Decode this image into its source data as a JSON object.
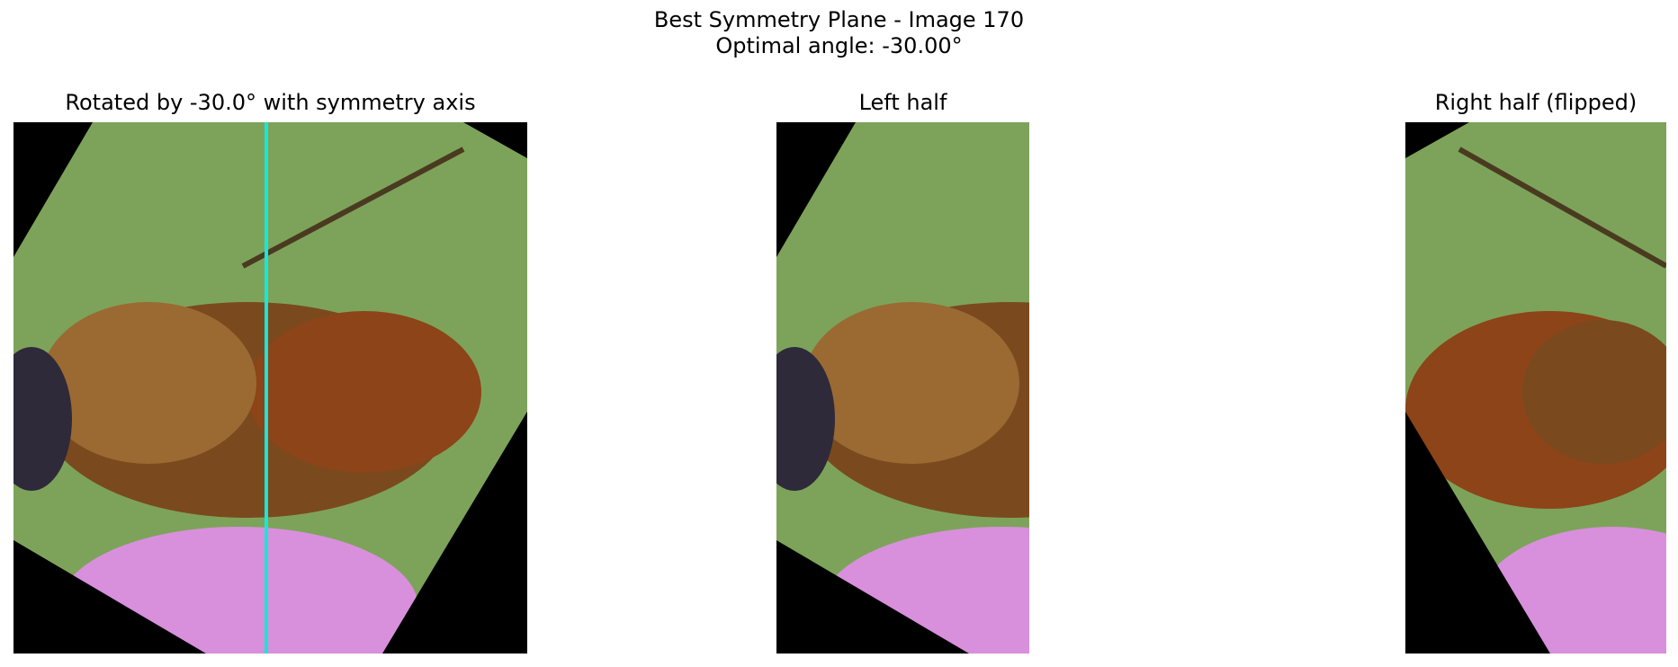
{
  "figure": {
    "suptitle_line1": "Best Symmetry Plane - Image 170",
    "suptitle_line2": "Optimal angle: -30.00°"
  },
  "panels": [
    {
      "title": "Rotated by -30.0° with symmetry axis"
    },
    {
      "title": "Left half"
    },
    {
      "title": "Right half (flipped)"
    }
  ],
  "colors": {
    "background_green": "#7da35a",
    "rotation_fill": "#000000",
    "symmetry_axis": "#19e6d8",
    "flower_pink": "#d890dc",
    "bee_brown": "#7a4a1e"
  }
}
